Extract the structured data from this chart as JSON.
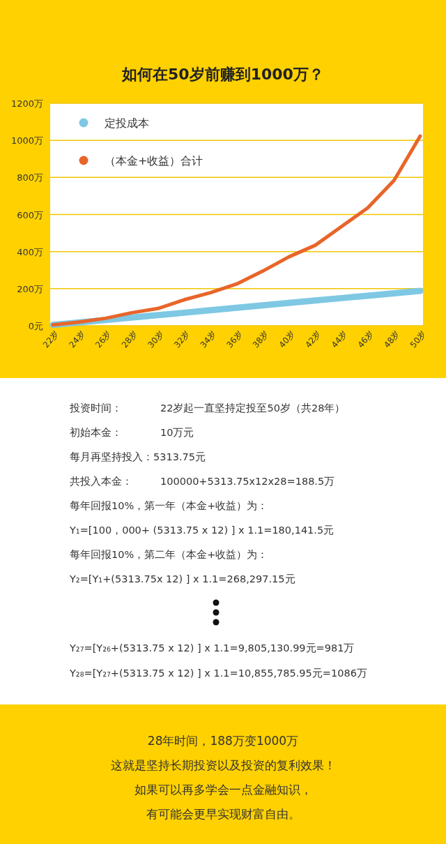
{
  "chart_data": {
    "type": "line",
    "title": "如何在50岁前赚到1000万？",
    "categories": [
      "22岁",
      "24岁",
      "26岁",
      "28岁",
      "30岁",
      "32岁",
      "34岁",
      "36岁",
      "38岁",
      "40岁",
      "42岁",
      "44岁",
      "46岁",
      "48岁",
      "50岁"
    ],
    "series": [
      {
        "name": "定投成本",
        "color": "#7ec8e3",
        "values": [
          5,
          18,
          31,
          44,
          57,
          70,
          84,
          97,
          110,
          123,
          136,
          149,
          162,
          175,
          188
        ]
      },
      {
        "name": "（本金+收益）合计",
        "color": "#e8652a",
        "values": [
          5,
          20,
          40,
          70,
          93,
          140,
          178,
          225,
          295,
          372,
          434,
          535,
          636,
          783,
          1023
        ]
      }
    ],
    "ylim": [
      0,
      1200
    ],
    "yticks": [
      {
        "value": 0,
        "label": "0元"
      },
      {
        "value": 200,
        "label": "200万"
      },
      {
        "value": 400,
        "label": "400万"
      },
      {
        "value": 600,
        "label": "600万"
      },
      {
        "value": 800,
        "label": "800万"
      },
      {
        "value": 1000,
        "label": "1000万"
      },
      {
        "value": 1200,
        "label": "1200万"
      }
    ],
    "grid": "y",
    "legend": "top left",
    "marker": "none",
    "line_style": "solid",
    "annotations": [
      "投资时间：",
      "22岁起一直坚持定投至50岁（共28年）",
      "初始本金：",
      "10万元",
      "每月再坚持投入：5313.75元",
      "共投入本金：",
      "100000+5313.75x12x28=188.5万",
      "每年回报10%，第一年（本金+收益）为：",
      "Y₁=[100，000+ (5313.75 x 12) ] x 1.1=180,141.5元",
      "每年回报10%，第二年（本金+收益）为：",
      "Y₂=[Y₁+(5313.75x 12) ] x 1.1=268,297.15元",
      "Y₂₇=[Y₂₆+(5313.75 x 12) ] x 1.1=9,805,130.99元=981万",
      "Y₂₈=[Y₂₇+(5313.75 x 12) ] x 1.1=10,855,785.95元=1086万",
      "28年时间，188万变1000万",
      "这就是坚持长期投资以及投资的复利效果！",
      "如果可以再多学会一点金融知识，",
      "有可能会更早实现财富自由。"
    ]
  }
}
